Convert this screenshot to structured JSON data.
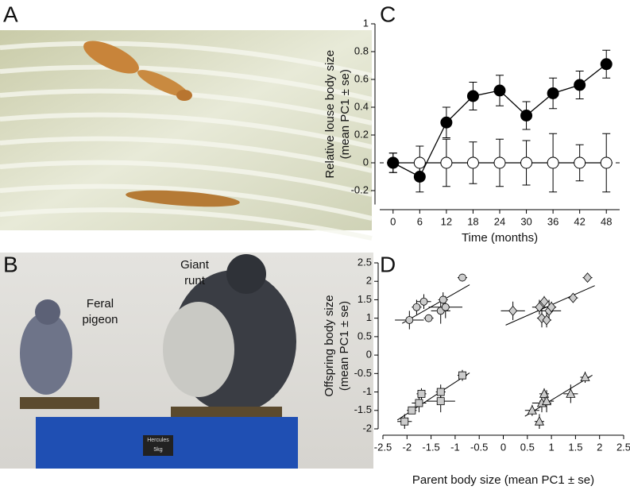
{
  "panels": {
    "a": "A",
    "b": "B",
    "c": "C",
    "d": "D"
  },
  "photo_b": {
    "feral": [
      "Feral",
      "pigeon"
    ],
    "giant": [
      "Giant",
      "runt"
    ],
    "brand": "Hercules",
    "weight": "5kg"
  },
  "chart_data": [
    {
      "type": "line",
      "xlabel": "Time (months)",
      "ylabel": [
        "Relative louse body size",
        "(mean PC1 ± se)"
      ],
      "x": [
        0,
        6,
        12,
        18,
        24,
        30,
        36,
        42,
        48
      ],
      "xlim": [
        -3,
        51
      ],
      "xticks": [
        0,
        6,
        12,
        18,
        24,
        30,
        36,
        42,
        48
      ],
      "ylim": [
        -0.3,
        1.0
      ],
      "yticks": [
        -0.2,
        0.0,
        0.2,
        0.4,
        0.6,
        0.8,
        1.0
      ],
      "zero_line": true,
      "series": [
        {
          "color": "#ffffff",
          "values": [
            0,
            0,
            0,
            0,
            0,
            0,
            0,
            0,
            0
          ],
          "errors": [
            0.07,
            0.12,
            0.17,
            0.15,
            0.17,
            0.16,
            0.21,
            0.13,
            0.21
          ]
        },
        {
          "color": "#000000",
          "values": [
            0,
            -0.1,
            0.29,
            0.48,
            0.52,
            0.34,
            0.5,
            0.56,
            0.71
          ],
          "errors": [
            0.07,
            0.11,
            0.11,
            0.1,
            0.11,
            0.1,
            0.11,
            0.1,
            0.1
          ]
        }
      ]
    },
    {
      "type": "scatter",
      "xlabel": "Parent body size (mean PC1 ± se)",
      "ylabel": [
        "Offspring body size",
        "(mean PC1 ± se)"
      ],
      "xlim": [
        -2.5,
        2.5
      ],
      "xticks": [
        -2.5,
        -2,
        -1.5,
        -1,
        -0.5,
        0,
        0.5,
        1,
        1.5,
        2,
        2.5
      ],
      "ylim": [
        -2,
        2.5
      ],
      "yticks": [
        -2,
        -1.5,
        -1,
        -0.5,
        0,
        0.5,
        1,
        1.5,
        2,
        2.5
      ],
      "series": [
        {
          "marker": "circle",
          "color": "#cccccc",
          "x": [
            -1.95,
            -1.8,
            -1.65,
            -1.55,
            -1.3,
            -1.25,
            -1.2,
            -0.85
          ],
          "y": [
            0.95,
            1.3,
            1.45,
            1.0,
            1.2,
            1.5,
            1.3,
            2.1
          ],
          "x_err": [
            0.3,
            0.1,
            0.15,
            0.1,
            0.2,
            0.1,
            0.35,
            0.1
          ],
          "y_err": [
            0.25,
            0.2,
            0.2,
            0.1,
            0.35,
            0.2,
            0.3,
            0.1
          ]
        },
        {
          "marker": "diamond",
          "color": "#cccccc",
          "x": [
            0.2,
            0.75,
            0.8,
            0.85,
            0.9,
            0.95,
            1.0,
            1.45,
            1.75
          ],
          "y": [
            1.2,
            1.3,
            1.0,
            1.45,
            0.95,
            1.2,
            1.3,
            1.55,
            2.1
          ],
          "x_err": [
            0.25,
            0.15,
            0.1,
            0.1,
            0.1,
            0.25,
            0.1,
            0.1,
            0.1
          ],
          "y_err": [
            0.25,
            0.2,
            0.25,
            0.15,
            0.2,
            0.3,
            0.15,
            0.1,
            0.1
          ]
        },
        {
          "marker": "square",
          "color": "#cccccc",
          "x": [
            -2.05,
            -1.9,
            -1.75,
            -1.7,
            -1.3,
            -1.3,
            -0.85
          ],
          "y": [
            -1.8,
            -1.5,
            -1.3,
            -1.05,
            -1.25,
            -1.0,
            -0.55
          ],
          "x_err": [
            0.15,
            0.1,
            0.15,
            0.1,
            0.3,
            0.1,
            0.1
          ],
          "y_err": [
            0.2,
            0.1,
            0.25,
            0.15,
            0.3,
            0.2,
            0.15
          ]
        },
        {
          "marker": "triangle",
          "color": "#cccccc",
          "x": [
            0.6,
            0.75,
            0.8,
            0.85,
            0.9,
            1.4,
            1.7
          ],
          "y": [
            -1.5,
            -1.8,
            -1.3,
            -1.05,
            -1.25,
            -1.05,
            -0.6
          ],
          "x_err": [
            0.15,
            0.1,
            0.2,
            0.1,
            0.15,
            0.15,
            0.1
          ],
          "y_err": [
            0.15,
            0.2,
            0.25,
            0.15,
            0.3,
            0.25,
            0.15
          ]
        }
      ]
    }
  ]
}
